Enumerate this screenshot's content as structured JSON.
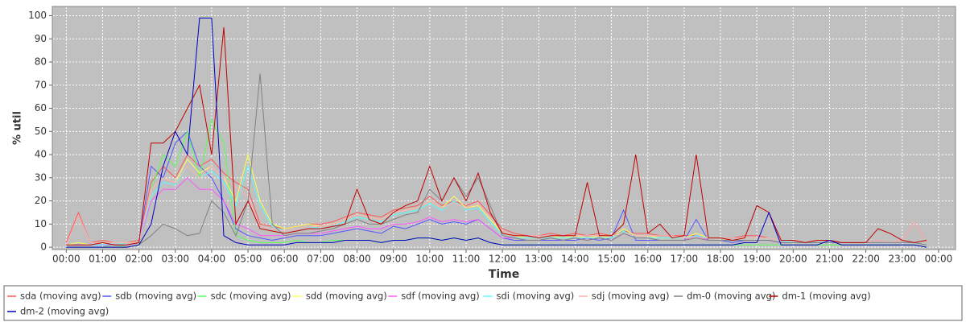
{
  "chart_data": {
    "type": "line",
    "x_label": "Time",
    "y_label": "% util",
    "x": [
      0,
      20,
      40,
      60,
      80,
      100,
      120,
      140,
      160,
      180,
      200,
      220,
      240,
      260,
      280,
      300,
      320,
      340,
      360,
      380,
      400,
      420,
      440,
      460,
      480,
      500,
      520,
      540,
      560,
      580,
      600,
      620,
      640,
      660,
      680,
      700,
      720,
      740,
      760,
      780,
      800,
      820,
      840,
      860,
      880,
      900,
      920,
      940,
      960,
      980,
      1000,
      1020,
      1040,
      1060,
      1080,
      1100,
      1120,
      1140,
      1160,
      1180,
      1200,
      1220,
      1240,
      1260,
      1280,
      1300,
      1320,
      1340,
      1360,
      1380,
      1400,
      1420
    ],
    "xlim": [
      -23,
      1468
    ],
    "xticks": [
      {
        "value": 0,
        "label": "00:00"
      },
      {
        "value": 60,
        "label": "01:00"
      },
      {
        "value": 120,
        "label": "02:00"
      },
      {
        "value": 180,
        "label": "03:00"
      },
      {
        "value": 240,
        "label": "04:00"
      },
      {
        "value": 300,
        "label": "05:00"
      },
      {
        "value": 360,
        "label": "06:00"
      },
      {
        "value": 420,
        "label": "07:00"
      },
      {
        "value": 480,
        "label": "08:00"
      },
      {
        "value": 540,
        "label": "09:00"
      },
      {
        "value": 600,
        "label": "10:00"
      },
      {
        "value": 660,
        "label": "11:00"
      },
      {
        "value": 720,
        "label": "12:00"
      },
      {
        "value": 780,
        "label": "13:00"
      },
      {
        "value": 840,
        "label": "14:00"
      },
      {
        "value": 900,
        "label": "15:00"
      },
      {
        "value": 960,
        "label": "16:00"
      },
      {
        "value": 1020,
        "label": "17:00"
      },
      {
        "value": 1080,
        "label": "18:00"
      },
      {
        "value": 1140,
        "label": "19:00"
      },
      {
        "value": 1200,
        "label": "20:00"
      },
      {
        "value": 1260,
        "label": "21:00"
      },
      {
        "value": 1320,
        "label": "22:00"
      },
      {
        "value": 1380,
        "label": "23:00"
      },
      {
        "value": 1440,
        "label": "00:00"
      }
    ],
    "ylim": [
      -1,
      104
    ],
    "yticks": [
      0,
      10,
      20,
      30,
      40,
      50,
      60,
      70,
      80,
      90,
      100
    ],
    "grid": true,
    "series": [
      {
        "name": "sda (moving avg)",
        "color": "#ff5555",
        "values": [
          2,
          15,
          2,
          3,
          2,
          2,
          3,
          28,
          35,
          30,
          40,
          35,
          38,
          32,
          28,
          25,
          10,
          9,
          8,
          9,
          10,
          10,
          11,
          13,
          15,
          14,
          13,
          16,
          17,
          18,
          22,
          18,
          20,
          18,
          20,
          14,
          8,
          6,
          5,
          5,
          6,
          5,
          6,
          5,
          6,
          5,
          7,
          6,
          6,
          5,
          5,
          5,
          5,
          4,
          4,
          4,
          5,
          5,
          4,
          3,
          3,
          2,
          3,
          3,
          2,
          2,
          2,
          3,
          2,
          3,
          11,
          2
        ]
      },
      {
        "name": "sdb (moving avg)",
        "color": "#5555ff",
        "values": [
          1,
          1,
          1,
          1,
          1,
          1,
          2,
          35,
          30,
          45,
          50,
          35,
          30,
          20,
          8,
          5,
          4,
          3,
          4,
          5,
          5,
          5,
          6,
          7,
          8,
          7,
          6,
          9,
          8,
          10,
          12,
          10,
          11,
          10,
          12,
          8,
          4,
          3,
          3,
          3,
          3,
          3,
          3,
          4,
          3,
          4,
          16,
          3,
          3,
          3,
          3,
          3,
          12,
          3,
          3,
          2,
          3,
          3,
          3,
          2,
          2,
          2,
          2,
          2,
          2,
          2,
          2,
          2,
          2,
          2,
          2,
          1
        ]
      },
      {
        "name": "sdc (moving avg)",
        "color": "#55ff55",
        "values": [
          0,
          0,
          0,
          0,
          1,
          0,
          1,
          25,
          40,
          35,
          50,
          30,
          55,
          45,
          5,
          3,
          2,
          2,
          2,
          3,
          2,
          2,
          3,
          3,
          3,
          3,
          2,
          3,
          3,
          4,
          4,
          3,
          4,
          3,
          4,
          2,
          1,
          1,
          1,
          1,
          1,
          1,
          1,
          1,
          1,
          1,
          1,
          1,
          1,
          1,
          1,
          1,
          1,
          1,
          1,
          1,
          1,
          1,
          1,
          1,
          1,
          1,
          1,
          1,
          1,
          1,
          1,
          1,
          1,
          1,
          1,
          0
        ]
      },
      {
        "name": "sdd (moving avg)",
        "color": "#ffff55",
        "values": [
          1,
          2,
          1,
          2,
          2,
          2,
          2,
          25,
          30,
          28,
          38,
          32,
          35,
          30,
          20,
          40,
          20,
          10,
          8,
          9,
          10,
          9,
          10,
          12,
          14,
          13,
          12,
          15,
          16,
          17,
          20,
          17,
          22,
          17,
          18,
          12,
          6,
          5,
          4,
          4,
          5,
          4,
          5,
          4,
          5,
          4,
          8,
          5,
          5,
          4,
          4,
          4,
          6,
          4,
          4,
          3,
          4,
          4,
          4,
          3,
          2,
          2,
          2,
          2,
          2,
          2,
          2,
          2,
          2,
          2,
          2,
          1
        ]
      },
      {
        "name": "sdf (moving avg)",
        "color": "#ff55ff",
        "values": [
          1,
          1,
          1,
          1,
          1,
          1,
          2,
          20,
          25,
          25,
          30,
          25,
          25,
          20,
          10,
          8,
          5,
          5,
          5,
          6,
          6,
          6,
          7,
          8,
          9,
          8,
          8,
          10,
          10,
          11,
          13,
          11,
          12,
          11,
          12,
          8,
          4,
          4,
          3,
          3,
          4,
          3,
          4,
          3,
          4,
          3,
          6,
          4,
          4,
          3,
          3,
          3,
          5,
          3,
          3,
          3,
          3,
          3,
          3,
          2,
          2,
          2,
          2,
          2,
          2,
          2,
          2,
          2,
          2,
          2,
          2,
          1
        ]
      },
      {
        "name": "sdi (moving avg)",
        "color": "#55ffff",
        "values": [
          1,
          1,
          1,
          1,
          2,
          1,
          2,
          22,
          28,
          27,
          35,
          30,
          33,
          28,
          18,
          35,
          18,
          9,
          7,
          8,
          9,
          8,
          9,
          11,
          13,
          12,
          11,
          14,
          15,
          16,
          19,
          16,
          20,
          16,
          17,
          11,
          5,
          4,
          4,
          4,
          4,
          4,
          4,
          4,
          4,
          4,
          7,
          4,
          4,
          4,
          4,
          4,
          5,
          4,
          4,
          3,
          4,
          4,
          4,
          3,
          2,
          2,
          2,
          2,
          2,
          2,
          2,
          2,
          2,
          2,
          2,
          1
        ]
      },
      {
        "name": "sdj (moving avg)",
        "color": "#ffafaf",
        "values": [
          1,
          14,
          2,
          2,
          2,
          2,
          2,
          25,
          30,
          28,
          35,
          30,
          35,
          30,
          26,
          22,
          9,
          8,
          7,
          8,
          9,
          9,
          10,
          12,
          14,
          13,
          12,
          15,
          16,
          17,
          20,
          17,
          19,
          17,
          19,
          13,
          7,
          5,
          5,
          5,
          5,
          5,
          5,
          5,
          5,
          5,
          6,
          5,
          5,
          5,
          5,
          4,
          4,
          4,
          4,
          4,
          4,
          4,
          4,
          3,
          3,
          2,
          3,
          3,
          2,
          2,
          2,
          3,
          2,
          3,
          11,
          2
        ]
      },
      {
        "name": "dm-0 (moving avg)",
        "color": "#808080",
        "values": [
          0,
          0,
          0,
          0,
          0,
          0,
          1,
          5,
          10,
          8,
          5,
          6,
          20,
          15,
          5,
          20,
          75,
          10,
          5,
          6,
          6,
          7,
          8,
          10,
          12,
          10,
          10,
          12,
          14,
          15,
          25,
          20,
          30,
          22,
          30,
          18,
          5,
          4,
          3,
          3,
          4,
          3,
          4,
          3,
          4,
          3,
          6,
          4,
          4,
          3,
          3,
          3,
          4,
          3,
          3,
          3,
          3,
          3,
          3,
          2,
          2,
          2,
          2,
          2,
          2,
          2,
          2,
          2,
          2,
          2,
          2,
          1
        ]
      },
      {
        "name": "dm-1 (moving avg)",
        "color": "#c00000",
        "values": [
          1,
          1,
          1,
          2,
          1,
          1,
          2,
          45,
          45,
          50,
          60,
          70,
          40,
          95,
          10,
          20,
          8,
          7,
          6,
          7,
          8,
          8,
          9,
          10,
          25,
          12,
          10,
          15,
          18,
          20,
          35,
          20,
          30,
          20,
          32,
          15,
          6,
          5,
          5,
          4,
          5,
          5,
          5,
          28,
          5,
          5,
          10,
          40,
          6,
          10,
          4,
          5,
          40,
          4,
          4,
          3,
          4,
          18,
          15,
          3,
          3,
          2,
          3,
          3,
          2,
          2,
          2,
          8,
          6,
          3,
          2,
          3
        ]
      },
      {
        "name": "dm-2 (moving avg)",
        "color": "#0000c0",
        "values": [
          0,
          0,
          0,
          0,
          0,
          0,
          1,
          10,
          35,
          50,
          40,
          99,
          99,
          5,
          2,
          1,
          1,
          1,
          1,
          2,
          2,
          2,
          2,
          3,
          3,
          3,
          2,
          3,
          3,
          4,
          4,
          3,
          4,
          3,
          4,
          2,
          1,
          1,
          1,
          1,
          1,
          1,
          1,
          1,
          1,
          1,
          1,
          1,
          1,
          1,
          1,
          1,
          1,
          1,
          1,
          1,
          2,
          2,
          15,
          1,
          1,
          1,
          1,
          3,
          1,
          1,
          1,
          1,
          1,
          1,
          1,
          0
        ]
      }
    ]
  }
}
